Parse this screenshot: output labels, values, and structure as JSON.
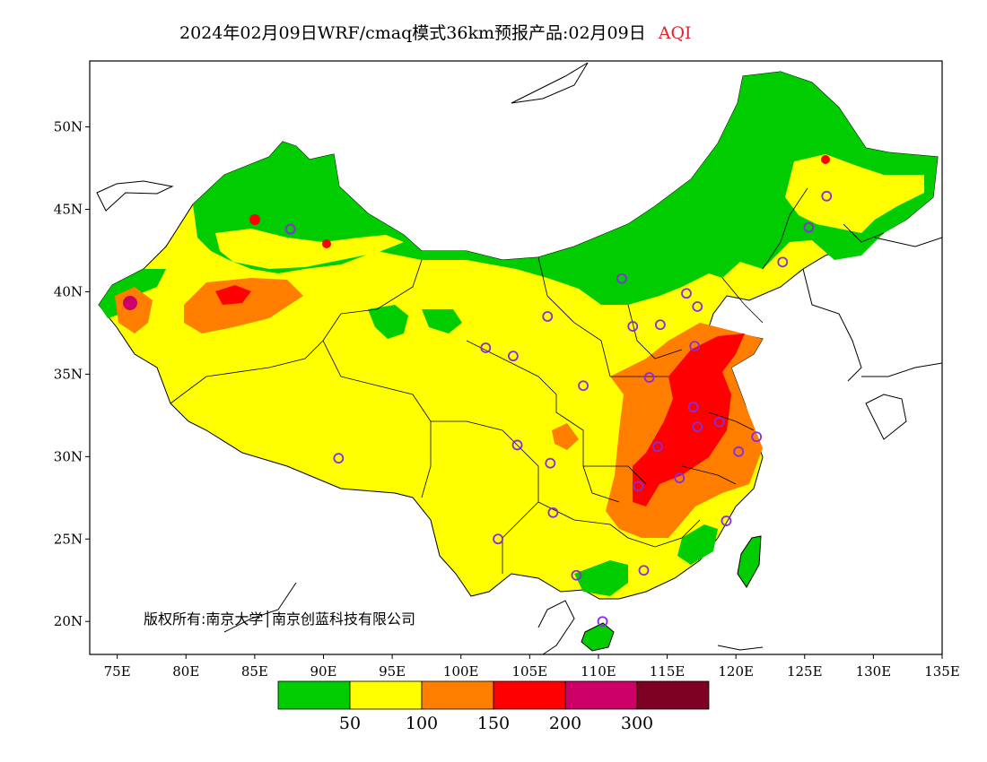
{
  "title": {
    "main": "2024年02月09日WRF/cmaq模式36km预报产品:02月09日",
    "product": "AQI",
    "product_color": "#e0242e"
  },
  "map": {
    "lon_range": [
      73,
      135
    ],
    "lat_range": [
      18,
      54
    ],
    "lon_ticks": [
      {
        "value": 75,
        "label": "75E"
      },
      {
        "value": 80,
        "label": "80E"
      },
      {
        "value": 85,
        "label": "85E"
      },
      {
        "value": 90,
        "label": "90E"
      },
      {
        "value": 95,
        "label": "95E"
      },
      {
        "value": 100,
        "label": "100E"
      },
      {
        "value": 105,
        "label": "105E"
      },
      {
        "value": 110,
        "label": "110E"
      },
      {
        "value": 115,
        "label": "115E"
      },
      {
        "value": 120,
        "label": "120E"
      },
      {
        "value": 125,
        "label": "125E"
      },
      {
        "value": 130,
        "label": "130E"
      },
      {
        "value": 135,
        "label": "135E"
      }
    ],
    "lat_ticks": [
      {
        "value": 20,
        "label": "20N"
      },
      {
        "value": 25,
        "label": "25N"
      },
      {
        "value": 30,
        "label": "30N"
      },
      {
        "value": 35,
        "label": "35N"
      },
      {
        "value": 40,
        "label": "40N"
      },
      {
        "value": 45,
        "label": "45N"
      },
      {
        "value": 50,
        "label": "50N"
      }
    ],
    "credit": "版权所有:南京大学│南京创蓝科技有限公司",
    "city_marker_color": "#8a2be2",
    "cities": [
      {
        "lon": 87.6,
        "lat": 43.8
      },
      {
        "lon": 91.1,
        "lat": 29.9
      },
      {
        "lon": 101.8,
        "lat": 36.6
      },
      {
        "lon": 103.8,
        "lat": 36.1
      },
      {
        "lon": 106.3,
        "lat": 38.5
      },
      {
        "lon": 111.7,
        "lat": 40.8
      },
      {
        "lon": 112.5,
        "lat": 37.9
      },
      {
        "lon": 114.5,
        "lat": 38.0
      },
      {
        "lon": 116.4,
        "lat": 39.9
      },
      {
        "lon": 117.2,
        "lat": 39.1
      },
      {
        "lon": 117.0,
        "lat": 36.7
      },
      {
        "lon": 113.7,
        "lat": 34.8
      },
      {
        "lon": 108.9,
        "lat": 34.3
      },
      {
        "lon": 104.1,
        "lat": 30.7
      },
      {
        "lon": 106.5,
        "lat": 29.6
      },
      {
        "lon": 106.7,
        "lat": 26.6
      },
      {
        "lon": 102.7,
        "lat": 25.0
      },
      {
        "lon": 108.4,
        "lat": 22.8
      },
      {
        "lon": 113.3,
        "lat": 23.1
      },
      {
        "lon": 110.3,
        "lat": 20.0
      },
      {
        "lon": 119.3,
        "lat": 26.1
      },
      {
        "lon": 115.9,
        "lat": 28.7
      },
      {
        "lon": 112.9,
        "lat": 28.2
      },
      {
        "lon": 114.3,
        "lat": 30.6
      },
      {
        "lon": 117.2,
        "lat": 31.8
      },
      {
        "lon": 118.8,
        "lat": 32.1
      },
      {
        "lon": 120.2,
        "lat": 30.3
      },
      {
        "lon": 121.5,
        "lat": 31.2
      },
      {
        "lon": 116.9,
        "lat": 33.0
      },
      {
        "lon": 123.4,
        "lat": 41.8
      },
      {
        "lon": 125.3,
        "lat": 43.9
      },
      {
        "lon": 126.6,
        "lat": 45.8
      }
    ]
  },
  "legend": {
    "colors": [
      "#00cc00",
      "#ffff00",
      "#ff7e00",
      "#ff0000",
      "#cc0066",
      "#7e0023"
    ],
    "labels": [
      "50",
      "100",
      "150",
      "200",
      "300"
    ]
  }
}
